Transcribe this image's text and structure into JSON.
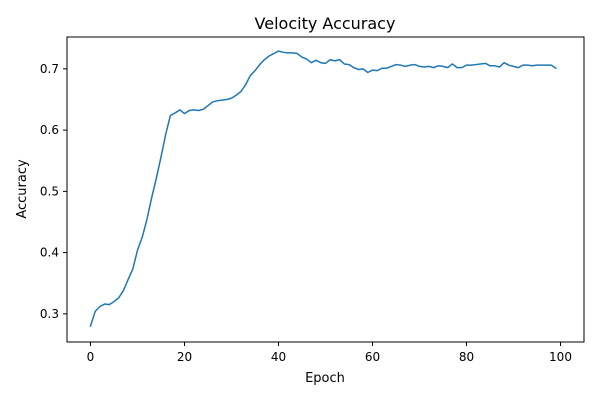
{
  "chart_data": {
    "type": "line",
    "title": "Velocity Accuracy",
    "xlabel": "Epoch",
    "ylabel": "Accuracy",
    "xlim": [
      -5,
      105
    ],
    "ylim": [
      0.254,
      0.752
    ],
    "xticks": [
      0,
      20,
      40,
      60,
      80,
      100
    ],
    "yticks": [
      0.3,
      0.4,
      0.5,
      0.6,
      0.7
    ],
    "xtick_labels": [
      "0",
      "20",
      "40",
      "60",
      "80",
      "100"
    ],
    "ytick_labels": [
      "0.3",
      "0.4",
      "0.5",
      "0.6",
      "0.7"
    ],
    "grid": false,
    "legend": "none",
    "colors": {
      "line": "#1f77b4",
      "axes": "#000000",
      "background": "#ffffff"
    },
    "series": [
      {
        "x": [
          0,
          1,
          2,
          3,
          4,
          5,
          6,
          7,
          8,
          9,
          10,
          11,
          12,
          13,
          14,
          15,
          16,
          17,
          18,
          19,
          20,
          21,
          22,
          23,
          24,
          25,
          26,
          27,
          28,
          29,
          30,
          31,
          32,
          33,
          34,
          35,
          36,
          37,
          38,
          39,
          40,
          41,
          42,
          43,
          44,
          45,
          46,
          47,
          48,
          49,
          50,
          51,
          52,
          53,
          54,
          55,
          56,
          57,
          58,
          59,
          60,
          61,
          62,
          63,
          64,
          65,
          66,
          67,
          68,
          69,
          70,
          71,
          72,
          73,
          74,
          75,
          76,
          77,
          78,
          79,
          80,
          81,
          82,
          83,
          84,
          85,
          86,
          87,
          88,
          89,
          90,
          91,
          92,
          93,
          94,
          95,
          96,
          97,
          98,
          99
        ],
        "values": [
          0.28,
          0.304,
          0.312,
          0.316,
          0.315,
          0.32,
          0.326,
          0.338,
          0.356,
          0.373,
          0.404,
          0.425,
          0.454,
          0.489,
          0.521,
          0.556,
          0.593,
          0.624,
          0.628,
          0.633,
          0.627,
          0.632,
          0.633,
          0.632,
          0.634,
          0.64,
          0.646,
          0.648,
          0.649,
          0.65,
          0.652,
          0.657,
          0.663,
          0.674,
          0.689,
          0.697,
          0.707,
          0.715,
          0.721,
          0.725,
          0.729,
          0.727,
          0.726,
          0.726,
          0.725,
          0.719,
          0.716,
          0.71,
          0.714,
          0.71,
          0.709,
          0.715,
          0.713,
          0.715,
          0.708,
          0.707,
          0.702,
          0.699,
          0.7,
          0.694,
          0.698,
          0.697,
          0.701,
          0.701,
          0.704,
          0.707,
          0.706,
          0.704,
          0.706,
          0.707,
          0.704,
          0.703,
          0.704,
          0.702,
          0.705,
          0.704,
          0.702,
          0.708,
          0.702,
          0.702,
          0.706,
          0.706,
          0.707,
          0.708,
          0.709,
          0.705,
          0.705,
          0.703,
          0.71,
          0.706,
          0.704,
          0.702,
          0.706,
          0.706,
          0.705,
          0.706,
          0.706,
          0.706,
          0.706,
          0.701
        ]
      }
    ]
  }
}
